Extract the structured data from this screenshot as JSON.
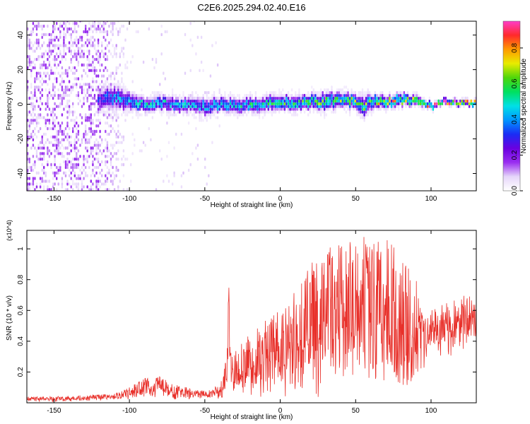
{
  "title": "C2E6.2025.294.02.40.E16",
  "chart_data": [
    {
      "type": "heatmap",
      "title": "C2E6.2025.294.02.40.E16",
      "xlabel": "Height of straight line (km)",
      "ylabel": "Frequency (Hz)",
      "xlim": [
        -168,
        130
      ],
      "ylim": [
        -50,
        48
      ],
      "xticks": [
        -150,
        -100,
        -50,
        0,
        50,
        100
      ],
      "xtick_labels": [
        "-150",
        "-100",
        "-50",
        "0",
        "50",
        "100"
      ],
      "yticks": [
        -40,
        -20,
        0,
        20,
        40
      ],
      "ytick_labels": [
        "-40",
        "-20",
        "0",
        "20",
        "40"
      ],
      "colorbar": {
        "label": "Normalized spectral amplitude",
        "range": [
          0,
          0.95
        ],
        "ticks": [
          0.0,
          0.2,
          0.4,
          0.6,
          0.8
        ],
        "tick_labels": [
          "0.0",
          "0.2",
          "0.4",
          "0.6",
          "0.8"
        ],
        "colors": [
          "#ffffff",
          "#e6d6fa",
          "#9a2ef0",
          "#6a00e0",
          "#1a2cf5",
          "#0096ff",
          "#00e0e6",
          "#00e060",
          "#4ed60a",
          "#e8ec00",
          "#ff9a00",
          "#ff2a2a",
          "#ff3cc8"
        ]
      },
      "ridge": {
        "x": [
          -122,
          -110,
          -100,
          -90,
          -80,
          -70,
          -60,
          -50,
          -40,
          -30,
          -20,
          -10,
          0,
          10,
          20,
          30,
          40,
          50,
          55,
          60,
          70,
          80,
          90,
          100,
          110,
          120,
          130
        ],
        "center_hz": [
          2,
          3,
          1,
          -1,
          0,
          -1,
          -1,
          -2,
          -1,
          -1,
          -1,
          0,
          0,
          0,
          1,
          1,
          2,
          1,
          -2,
          1,
          0,
          2,
          1,
          -2,
          1,
          0,
          0
        ],
        "width_hz": [
          7,
          8,
          6,
          5,
          5,
          5,
          5,
          6,
          5,
          5,
          5,
          5,
          5,
          5,
          5,
          6,
          5,
          5,
          7,
          5,
          4,
          4,
          3,
          2,
          2,
          2,
          2
        ],
        "peak_amplitude": [
          0.3,
          0.4,
          0.45,
          0.45,
          0.45,
          0.45,
          0.45,
          0.45,
          0.45,
          0.45,
          0.5,
          0.5,
          0.55,
          0.55,
          0.55,
          0.6,
          0.6,
          0.6,
          0.55,
          0.65,
          0.7,
          0.75,
          0.8,
          0.85,
          0.9,
          0.9,
          0.9
        ]
      },
      "noise_region_x": [
        -168,
        -95
      ]
    },
    {
      "type": "line",
      "xlabel": "Height of straight line (km)",
      "ylabel": "SNR (10 * v/v)",
      "y_multiplier": "(x10^4)",
      "xlim": [
        -168,
        130
      ],
      "ylim": [
        0,
        1.12
      ],
      "xticks": [
        -150,
        -100,
        -50,
        0,
        50,
        100
      ],
      "xtick_labels": [
        "-150",
        "-100",
        "-50",
        "0",
        "50",
        "100"
      ],
      "yticks": [
        0.2,
        0.4,
        0.6,
        0.8,
        1
      ],
      "ytick_labels": [
        "0.2",
        "0.4",
        "0.6",
        "0.8",
        "1"
      ],
      "color": "#e8302a",
      "envelope": {
        "x": [
          -168,
          -150,
          -130,
          -110,
          -100,
          -90,
          -80,
          -70,
          -60,
          -50,
          -40,
          -36,
          -34,
          -32,
          -30,
          -20,
          -10,
          0,
          10,
          20,
          30,
          40,
          50,
          60,
          70,
          80,
          90,
          93,
          96,
          100,
          110,
          120,
          130
        ],
        "base": [
          0.005,
          0.005,
          0.01,
          0.02,
          0.02,
          0.03,
          0.03,
          0.02,
          0.02,
          0.02,
          0.02,
          0.05,
          0.1,
          0.05,
          0.02,
          0.03,
          0.03,
          0.03,
          0.03,
          0.02,
          0.02,
          0.02,
          0.02,
          0.02,
          0.02,
          0.02,
          0.02,
          0.1,
          0.2,
          0.3,
          0.3,
          0.3,
          0.3
        ],
        "upper": [
          0.04,
          0.04,
          0.05,
          0.06,
          0.1,
          0.16,
          0.17,
          0.12,
          0.1,
          0.08,
          0.12,
          0.3,
          0.76,
          0.3,
          0.35,
          0.45,
          0.55,
          0.6,
          0.75,
          0.9,
          1.0,
          1.05,
          1.05,
          1.1,
          1.1,
          0.95,
          0.8,
          0.7,
          0.6,
          0.6,
          0.65,
          0.7,
          0.7
        ],
        "lower_fraction": 0.45
      }
    }
  ]
}
